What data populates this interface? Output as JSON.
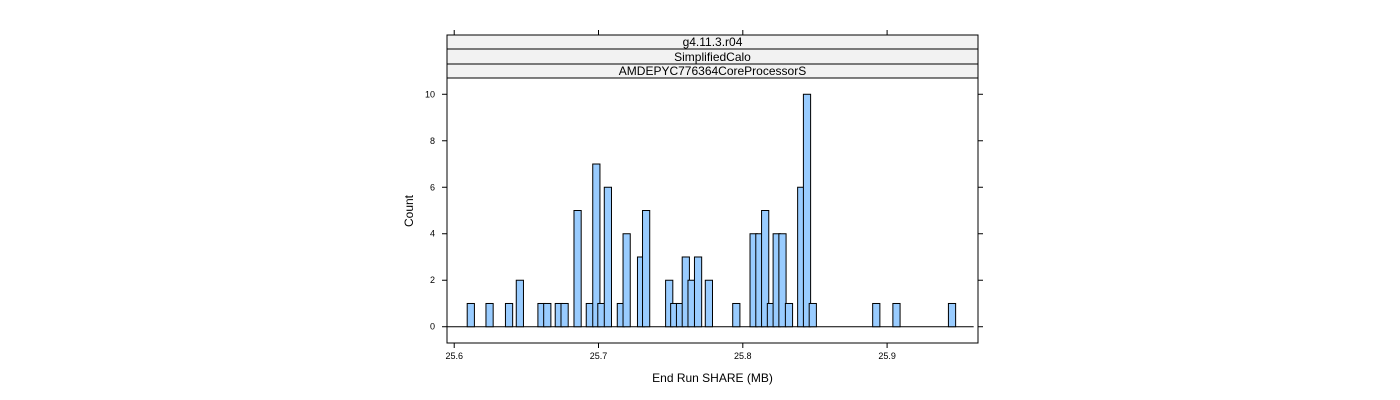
{
  "chart_data": {
    "type": "bar",
    "subtype": "histogram",
    "strips": [
      "g4.11.3.r04",
      "SimplifiedCalo",
      "AMDEPYC776364CoreProcessorS"
    ],
    "xlabel": "End Run SHARE (MB)",
    "ylabel": "Count",
    "xlim": [
      25.595,
      25.963
    ],
    "ylim": [
      -0.7,
      10.7
    ],
    "xticks": [
      25.6,
      25.7,
      25.8,
      25.9
    ],
    "yticks": [
      0,
      2,
      4,
      6,
      8,
      10
    ],
    "bin_width": 0.005,
    "bin_range": [
      25.595,
      25.96
    ],
    "bar_color": "#99ccff",
    "bars": [
      {
        "x": 25.6115,
        "count": 1
      },
      {
        "x": 25.6245,
        "count": 1
      },
      {
        "x": 25.638,
        "count": 1
      },
      {
        "x": 25.6455,
        "count": 2
      },
      {
        "x": 25.6605,
        "count": 1
      },
      {
        "x": 25.6645,
        "count": 1
      },
      {
        "x": 25.6725,
        "count": 1
      },
      {
        "x": 25.6765,
        "count": 1
      },
      {
        "x": 25.6855,
        "count": 5
      },
      {
        "x": 25.694,
        "count": 1
      },
      {
        "x": 25.6985,
        "count": 7
      },
      {
        "x": 25.702,
        "count": 1
      },
      {
        "x": 25.7065,
        "count": 6
      },
      {
        "x": 25.7155,
        "count": 1
      },
      {
        "x": 25.7195,
        "count": 4
      },
      {
        "x": 25.7295,
        "count": 3
      },
      {
        "x": 25.733,
        "count": 5
      },
      {
        "x": 25.749,
        "count": 2
      },
      {
        "x": 25.7525,
        "count": 1
      },
      {
        "x": 25.7565,
        "count": 1
      },
      {
        "x": 25.7605,
        "count": 3
      },
      {
        "x": 25.7645,
        "count": 2
      },
      {
        "x": 25.769,
        "count": 3
      },
      {
        "x": 25.7765,
        "count": 2
      },
      {
        "x": 25.7955,
        "count": 1
      },
      {
        "x": 25.8075,
        "count": 4
      },
      {
        "x": 25.8115,
        "count": 4
      },
      {
        "x": 25.8155,
        "count": 5
      },
      {
        "x": 25.8195,
        "count": 1
      },
      {
        "x": 25.8235,
        "count": 4
      },
      {
        "x": 25.8275,
        "count": 4
      },
      {
        "x": 25.832,
        "count": 1
      },
      {
        "x": 25.8405,
        "count": 6
      },
      {
        "x": 25.8445,
        "count": 10
      },
      {
        "x": 25.8485,
        "count": 1
      },
      {
        "x": 25.8925,
        "count": 1
      },
      {
        "x": 25.9065,
        "count": 1
      },
      {
        "x": 25.945,
        "count": 1
      }
    ]
  }
}
